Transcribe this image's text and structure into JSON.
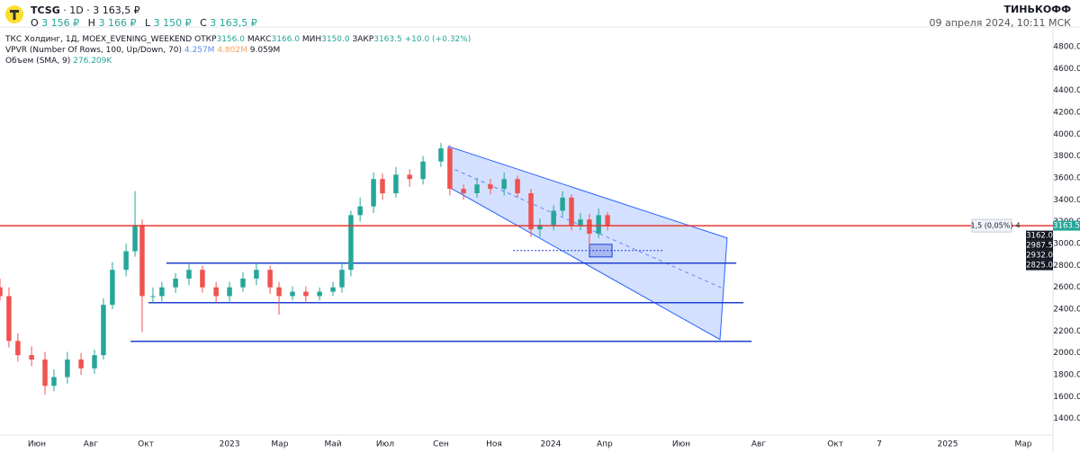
{
  "header": {
    "symbol": "TCSG",
    "interval": "1D",
    "price": "3 163,5 ₽",
    "ohlc": [
      {
        "key": "O",
        "value": "3 156 ₽"
      },
      {
        "key": "H",
        "value": "3 166 ₽"
      },
      {
        "key": "L",
        "value": "3 150 ₽"
      },
      {
        "key": "C",
        "value": "3 163,5 ₽"
      }
    ],
    "brand": "ТИНЬКОФФ",
    "datetime": "09 апреля 2024, 10:11 МСК"
  },
  "legend": {
    "main": {
      "name": "ТКС Холдинг, 1Д, MOEX_EVENING_WEEKEND",
      "fields": [
        {
          "key": "ОТКР",
          "value": "3156.0"
        },
        {
          "key": "МАКС",
          "value": "3166.0"
        },
        {
          "key": "МИН",
          "value": "3150.0"
        },
        {
          "key": "ЗАКР",
          "value": "3163.5"
        }
      ],
      "change": "+10.0 (+0.32%)"
    },
    "vpvr": {
      "name": "VPVR (Number Of Rows, 100, Up/Down, 70)",
      "up": "4.257M",
      "down": "4.802M",
      "total": "9.059M"
    },
    "volume": {
      "name": "Объем (SMA, 9)",
      "value": "276.209K"
    }
  },
  "chart_data": {
    "type": "candlestick",
    "x": [
      -1.4,
      -1.06,
      -0.72,
      -0.2,
      0.31,
      0.65,
      1.16,
      1.68,
      2.19,
      2.53,
      2.87,
      3.39,
      3.73,
      4.0,
      4.41,
      4.75,
      5.27,
      5.78,
      6.29,
      6.81,
      7.32,
      7.83,
      8.34,
      8.86,
      9.2,
      9.71,
      10.22,
      10.74,
      11.25,
      11.59,
      11.93,
      12.28,
      12.79,
      13.13,
      13.64,
      14.16,
      14.67,
      15.35,
      15.69,
      16.21,
      16.72,
      17.23,
      17.75,
      18.26,
      18.77,
      19.11,
      19.63,
      19.97,
      20.31,
      20.65,
      20.99,
      21.34,
      21.68
    ],
    "open": [
      2600,
      2520,
      2110,
      1980,
      1940,
      1700,
      1780,
      1940,
      1860,
      1980,
      2440,
      2760,
      2930,
      3170,
      2520,
      2520,
      2600,
      2680,
      2760,
      2600,
      2520,
      2600,
      2680,
      2760,
      2600,
      2520,
      2560,
      2520,
      2560,
      2600,
      2760,
      3260,
      3340,
      3590,
      3460,
      3630,
      3590,
      3750,
      3870,
      3500,
      3460,
      3540,
      3500,
      3590,
      3460,
      3130,
      3170,
      3300,
      3420,
      3170,
      3220,
      3090,
      3260
    ],
    "high": [
      2680,
      2600,
      2180,
      2060,
      2010,
      1850,
      2010,
      2000,
      2030,
      2500,
      2830,
      3000,
      3480,
      3220,
      2600,
      2650,
      2730,
      2820,
      2800,
      2650,
      2650,
      2740,
      2820,
      2800,
      2650,
      2610,
      2610,
      2600,
      2650,
      2820,
      3300,
      3420,
      3650,
      3640,
      3700,
      3680,
      3800,
      3920,
      3900,
      3540,
      3600,
      3590,
      3650,
      3620,
      3500,
      3230,
      3350,
      3480,
      3450,
      3280,
      3270,
      3320,
      3290
    ],
    "low": [
      2480,
      2050,
      1920,
      1880,
      1620,
      1650,
      1720,
      1800,
      1810,
      1940,
      2400,
      2700,
      2880,
      2190,
      2450,
      2470,
      2550,
      2620,
      2550,
      2460,
      2470,
      2560,
      2620,
      2540,
      2350,
      2480,
      2460,
      2480,
      2520,
      2550,
      2700,
      3200,
      3280,
      3400,
      3420,
      3520,
      3540,
      3700,
      3440,
      3400,
      3420,
      3450,
      3440,
      3420,
      3060,
      3060,
      3120,
      3250,
      3120,
      3120,
      2980,
      3050,
      3120
    ],
    "close": [
      2520,
      2110,
      1980,
      1940,
      1700,
      1780,
      1940,
      1860,
      1980,
      2440,
      2760,
      2930,
      3170,
      2520,
      2520,
      2600,
      2680,
      2760,
      2600,
      2520,
      2600,
      2680,
      2760,
      2600,
      2520,
      2560,
      2520,
      2560,
      2600,
      2760,
      3260,
      3340,
      3590,
      3460,
      3630,
      3590,
      3750,
      3870,
      3500,
      3460,
      3540,
      3500,
      3590,
      3460,
      3130,
      3170,
      3300,
      3420,
      3170,
      3220,
      3090,
      3260,
      3163.5
    ],
    "up_color": "#26a69a",
    "down_color": "#ef5350",
    "xlim": [
      -1.4,
      38.6
    ],
    "xticks": [
      {
        "value": 0,
        "label": "Июн"
      },
      {
        "value": 2.05,
        "label": "Авг"
      },
      {
        "value": 4.14,
        "label": "Окт"
      },
      {
        "value": 7.32,
        "label": "2023"
      },
      {
        "value": 9.23,
        "label": "Мар"
      },
      {
        "value": 11.25,
        "label": "Май"
      },
      {
        "value": 13.23,
        "label": "Июл"
      },
      {
        "value": 15.35,
        "label": "Сен"
      },
      {
        "value": 17.37,
        "label": "Ноя"
      },
      {
        "value": 19.52,
        "label": "2024"
      },
      {
        "value": 21.57,
        "label": "Апр"
      },
      {
        "value": 24.48,
        "label": "Июн"
      },
      {
        "value": 27.42,
        "label": "Авг"
      },
      {
        "value": 30.33,
        "label": "Окт"
      },
      {
        "value": 32.0,
        "label": "7"
      },
      {
        "value": 34.6,
        "label": "2025"
      },
      {
        "value": 37.47,
        "label": "Мар"
      }
    ],
    "ylim": [
      1250,
      4980
    ],
    "yticks": [
      {
        "value": 1400,
        "label": "1400.0"
      },
      {
        "value": 1600,
        "label": "1600.0"
      },
      {
        "value": 1800,
        "label": "1800.0"
      },
      {
        "value": 2000,
        "label": "2000.0"
      },
      {
        "value": 2200,
        "label": "2200.0"
      },
      {
        "value": 2400,
        "label": "2400.0"
      },
      {
        "value": 2600,
        "label": "2600.0"
      },
      {
        "value": 2800,
        "label": "2800.0"
      },
      {
        "value": 3000,
        "label": "3000.0"
      },
      {
        "value": 3200,
        "label": "3200.0"
      },
      {
        "value": 3400,
        "label": "3400.0"
      },
      {
        "value": 3600,
        "label": "3600.0"
      },
      {
        "value": 3800,
        "label": "3800.0"
      },
      {
        "value": 4000,
        "label": "4000.0"
      },
      {
        "value": 4200,
        "label": "4200.0"
      },
      {
        "value": 4400,
        "label": "4400.0"
      },
      {
        "value": 4600,
        "label": "4600.0"
      },
      {
        "value": 4800,
        "label": "4800.0"
      }
    ],
    "last_price_line": {
      "value": 3163.5,
      "color": "#e53935"
    },
    "hlines": [
      {
        "value": 2821,
        "x": [
          4.92,
          26.57
        ]
      },
      {
        "value": 2460,
        "x": [
          4.24,
          26.84
        ]
      },
      {
        "value": 2106,
        "x": [
          3.56,
          27.15
        ]
      }
    ],
    "hline_color": "#1e3fd0",
    "channel": {
      "upper": [
        [
          15.63,
          3888
        ],
        [
          26.22,
          3051
        ]
      ],
      "lower": [
        [
          15.63,
          3519
        ],
        [
          25.95,
          2123
        ]
      ],
      "color": "#2962ff"
    },
    "range_line": {
      "value": 2936,
      "x": [
        18.09,
        23.8
      ]
    },
    "range_box": {
      "x": [
        20.99,
        21.85
      ],
      "y": [
        2878,
        2993
      ]
    },
    "spread": {
      "label": "1,5 (0,05%)",
      "count": "4"
    },
    "price_badges": [
      3163.5,
      {
        "value": 3162,
        "label": "3162.0"
      },
      2987.5,
      {
        "value": 2932,
        "label": "2932.0"
      },
      {
        "value": 2825,
        "label": "2825.0"
      }
    ]
  }
}
